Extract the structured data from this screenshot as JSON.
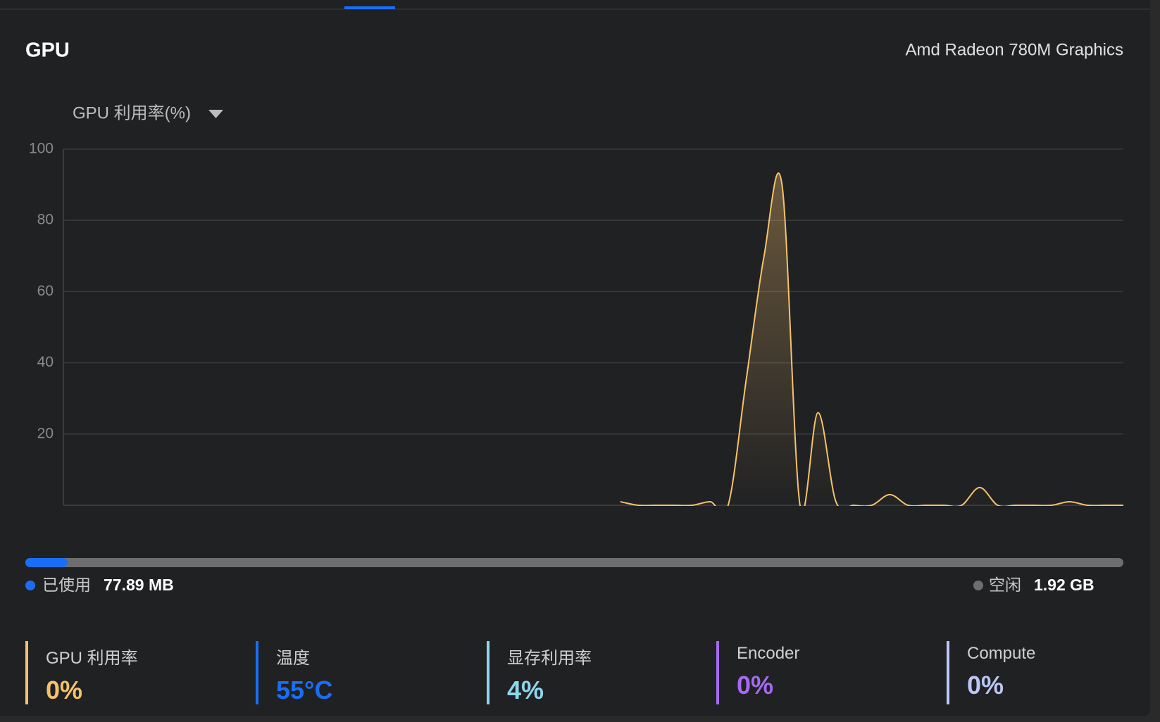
{
  "header": {
    "title": "GPU",
    "device": "Amd Radeon 780M Graphics"
  },
  "chart_data": {
    "type": "line",
    "title": "GPU 利用率(%)",
    "series": [
      {
        "color": "#f5c26b",
        "values": [
          null,
          null,
          null,
          null,
          null,
          null,
          null,
          null,
          null,
          null,
          null,
          null,
          null,
          null,
          null,
          null,
          null,
          null,
          null,
          null,
          null,
          null,
          null,
          null,
          null,
          null,
          null,
          null,
          null,
          null,
          null,
          1,
          0,
          0,
          0,
          0,
          1,
          0,
          35,
          70,
          90,
          0,
          26,
          1,
          0,
          0,
          3,
          0,
          0,
          0,
          0,
          5,
          0,
          0,
          0,
          0,
          1,
          0,
          0,
          0
        ]
      }
    ],
    "ylim": [
      0,
      100
    ],
    "yticks": [
      20,
      40,
      60,
      80,
      100
    ],
    "grid": true
  },
  "memory": {
    "used_label": "已使用",
    "used": "77.89 MB",
    "free_label": "空闲",
    "free": "1.92 GB"
  },
  "stats": [
    {
      "label": "GPU 利用率",
      "value": "0%",
      "color": "#f5c26b"
    },
    {
      "label": "温度",
      "value": "55°C",
      "color": "#1a6ef5"
    },
    {
      "label": "显存利用率",
      "value": "4%",
      "color": "#8fd6ec"
    },
    {
      "label": "Encoder",
      "value": "0%",
      "color": "#a56af2"
    },
    {
      "label": "Compute",
      "value": "0%",
      "color": "#bcc6f7"
    }
  ]
}
